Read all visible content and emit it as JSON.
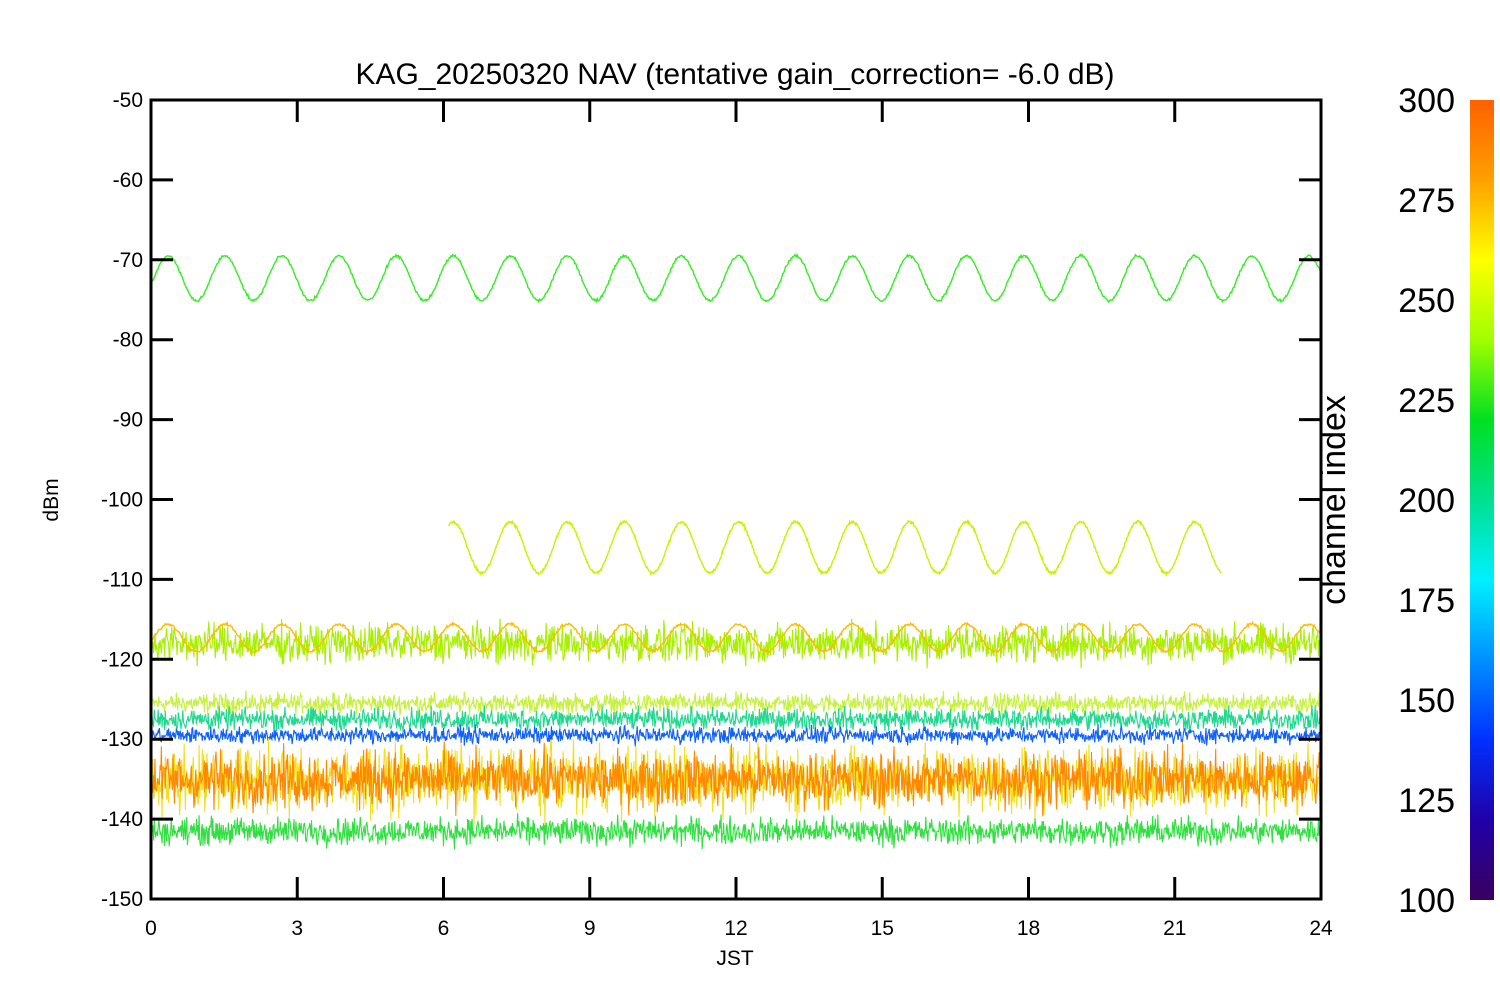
{
  "chart_data": {
    "type": "line",
    "title": "KAG_20250320 NAV (tentative gain_correction= -6.0 dB)",
    "xlabel": "JST",
    "ylabel": "dBm",
    "xlim": [
      0,
      24
    ],
    "ylim": [
      -150,
      -50
    ],
    "xticks": [
      0,
      3,
      6,
      9,
      12,
      15,
      18,
      21,
      24
    ],
    "yticks": [
      -50,
      -60,
      -70,
      -80,
      -90,
      -100,
      -110,
      -120,
      -130,
      -140,
      -150
    ],
    "grid": false,
    "legend": "none",
    "colorbar": {
      "label": "channel index",
      "range": [
        100,
        300
      ],
      "ticks": [
        300,
        275,
        250,
        225,
        200,
        175,
        150,
        125,
        100
      ],
      "colormap": [
        "#3a0060",
        "#2000a8",
        "#0030ff",
        "#0090ff",
        "#00f0ff",
        "#00e090",
        "#00e020",
        "#a0ff00",
        "#ffff00",
        "#ffa000",
        "#ff6000"
      ]
    },
    "series": [
      {
        "channel": 245,
        "color": "#33ee22",
        "x_range": [
          0,
          24
        ],
        "center": -72.3,
        "amplitude": 2.8,
        "period_h": 1.17,
        "style": "oscillating"
      },
      {
        "channel": 262,
        "color": "#ccf000",
        "x_range": [
          6.1,
          21.95
        ],
        "center": -106.0,
        "amplitude": 3.2,
        "period_h": 1.17,
        "style": "oscillating"
      },
      {
        "channel": 280,
        "color": "#ffbb00",
        "x_range": [
          0,
          24
        ],
        "center": -117.3,
        "amplitude": 1.7,
        "period_h": 1.17,
        "style": "oscillating"
      },
      {
        "channel": 255,
        "color": "#a8f000",
        "x_range": [
          0,
          24
        ],
        "center": -118.0,
        "spread": 3.5,
        "style": "noise-band"
      },
      {
        "channel": 258,
        "color": "#c8f040",
        "x_range": [
          0,
          24
        ],
        "center": -125.5,
        "spread": 1.8,
        "style": "noise-band"
      },
      {
        "channel": 200,
        "color": "#20d890",
        "x_range": [
          0,
          24
        ],
        "center": -127.5,
        "spread": 2.0,
        "style": "noise-band"
      },
      {
        "channel": 150,
        "color": "#1060ff",
        "x_range": [
          0,
          24
        ],
        "center": -129.5,
        "spread": 1.5,
        "style": "noise-band"
      },
      {
        "channel": 230,
        "color": "#30e040",
        "x_range": [
          0,
          24
        ],
        "center": -141.5,
        "spread": 2.5,
        "style": "noise-band"
      },
      {
        "channel": 270,
        "color": "#f0e020",
        "x_range": [
          0,
          24
        ],
        "center": -135.0,
        "spread": 6.0,
        "style": "noise-band"
      },
      {
        "channel": 295,
        "color": "#ff8800",
        "x_range": [
          0,
          24
        ],
        "center": -135.0,
        "spread": 5.0,
        "style": "noise-band"
      }
    ]
  }
}
